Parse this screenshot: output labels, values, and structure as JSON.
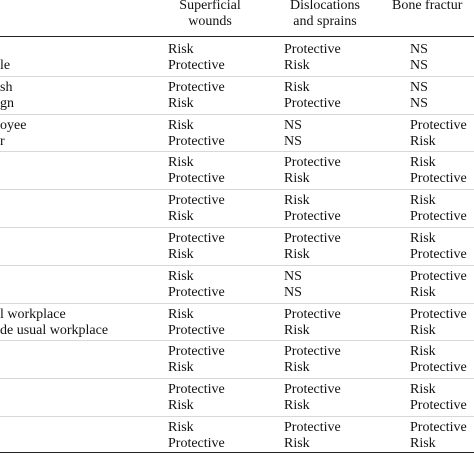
{
  "headers": [
    {
      "line1": "Superficial",
      "line2": "wounds"
    },
    {
      "line1": "Dislocations",
      "line2": "and sprains"
    },
    {
      "line1": "Bone fractur",
      "line2": ""
    }
  ],
  "rows": [
    {
      "labels": [
        "",
        "le"
      ],
      "sw": [
        "Risk",
        "Protective"
      ],
      "ds": [
        "Protective",
        "Risk"
      ],
      "bf": [
        "NS",
        "NS"
      ]
    },
    {
      "labels": [
        "sh",
        "gn"
      ],
      "sw": [
        "Protective",
        "Risk"
      ],
      "ds": [
        "Risk",
        "Protective"
      ],
      "bf": [
        "NS",
        "NS"
      ]
    },
    {
      "labels": [
        "oyee",
        "r"
      ],
      "sw": [
        "Risk",
        "Protective"
      ],
      "ds": [
        "NS",
        "NS"
      ],
      "bf": [
        "Protective",
        "Risk"
      ]
    },
    {
      "labels": [
        "",
        ""
      ],
      "sw": [
        "Risk",
        "Protective"
      ],
      "ds": [
        "Protective",
        "Risk"
      ],
      "bf": [
        "Risk",
        "Protective"
      ]
    },
    {
      "labels": [
        "",
        ""
      ],
      "sw": [
        "Protective",
        "Risk"
      ],
      "ds": [
        "Risk",
        "Protective"
      ],
      "bf": [
        "Risk",
        "Protective"
      ]
    },
    {
      "labels": [
        "",
        ""
      ],
      "sw": [
        "Protective",
        "Risk"
      ],
      "ds": [
        "Protective",
        "Risk"
      ],
      "bf": [
        "Risk",
        "Protective"
      ]
    },
    {
      "labels": [
        "",
        ""
      ],
      "sw": [
        "Risk",
        "Protective"
      ],
      "ds": [
        "NS",
        "NS"
      ],
      "bf": [
        "Protective",
        "Risk"
      ]
    },
    {
      "labels": [
        "l workplace",
        "de usual workplace"
      ],
      "sw": [
        "Risk",
        "Protective"
      ],
      "ds": [
        "Protective",
        "Risk"
      ],
      "bf": [
        "Protective",
        "Risk"
      ]
    },
    {
      "labels": [
        "",
        ""
      ],
      "sw": [
        "Protective",
        "Risk"
      ],
      "ds": [
        "Protective",
        "Risk"
      ],
      "bf": [
        "Risk",
        "Protective"
      ]
    },
    {
      "labels": [
        "",
        ""
      ],
      "sw": [
        "Protective",
        "Risk"
      ],
      "ds": [
        "Protective",
        "Risk"
      ],
      "bf": [
        "Risk",
        "Protective"
      ]
    },
    {
      "labels": [
        "",
        ""
      ],
      "sw": [
        "Risk",
        "Protective"
      ],
      "ds": [
        "Protective",
        "Risk"
      ],
      "bf": [
        "Protective",
        "Risk"
      ]
    }
  ]
}
